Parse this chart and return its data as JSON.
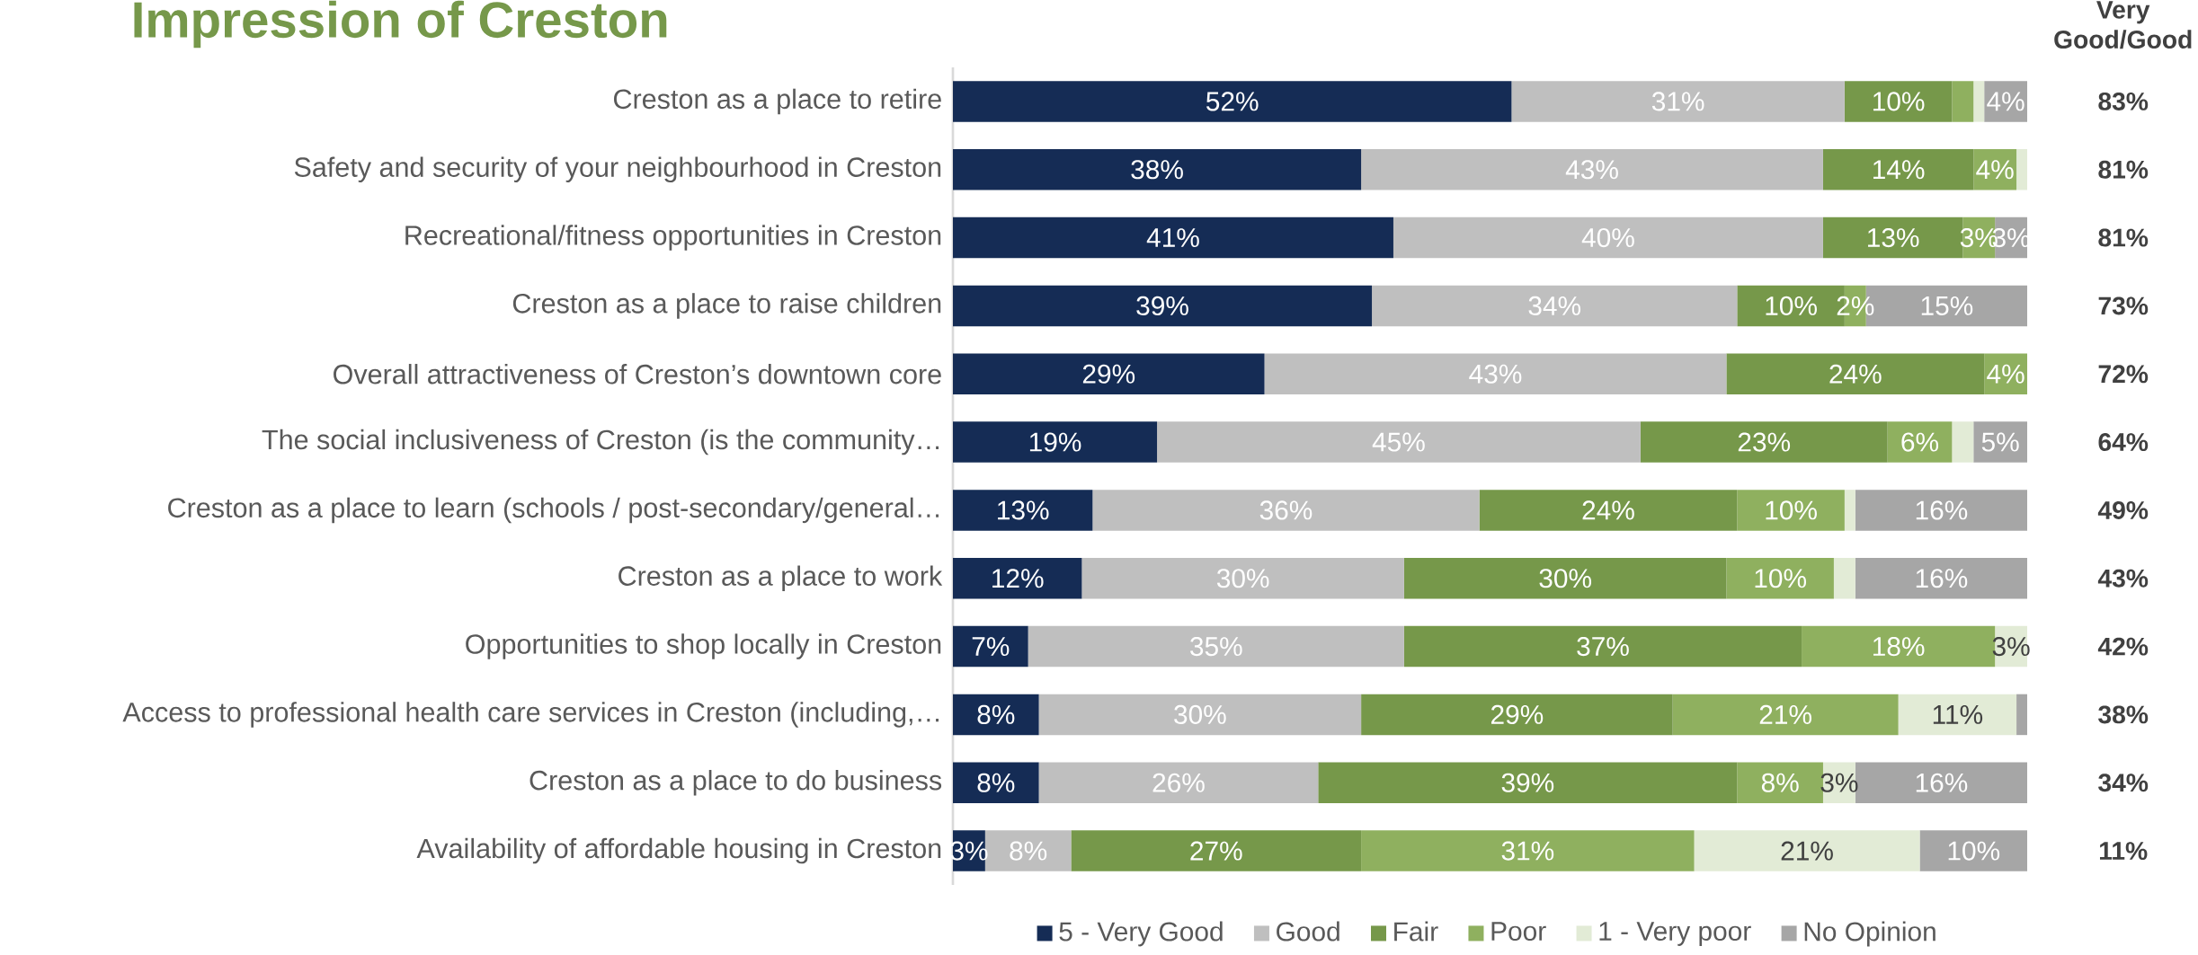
{
  "chart_data": {
    "type": "bar",
    "orientation": "horizontal",
    "stacked": true,
    "title": "Impression of Creston",
    "categories": [
      "Creston as a place to retire",
      "Safety and security of your neighbourhood in Creston",
      "Recreational/fitness opportunities in Creston",
      "Creston as a place to raise children",
      "Overall attractiveness of Creston’s downtown core",
      "The social inclusiveness of Creston (is the community…",
      "Creston as a place to learn (schools / post-secondary/general…",
      "Creston as a place to work",
      "Opportunities to shop locally in Creston",
      "Access to professional health care services in Creston (including,…",
      "Creston as a place to do business",
      "Availability of affordable housing in Creston"
    ],
    "series": [
      {
        "name": "5 - Very Good",
        "color": "#152c55",
        "values": [
          52,
          38,
          41,
          39,
          29,
          19,
          13,
          12,
          7,
          8,
          8,
          3
        ],
        "value_labels": [
          "52%",
          "38%",
          "41%",
          "39%",
          "29%",
          "19%",
          "13%",
          "12%",
          "7%",
          "8%",
          "8%",
          "3%"
        ]
      },
      {
        "name": "Good",
        "color": "#bfbfbf",
        "values": [
          31,
          43,
          40,
          34,
          43,
          45,
          36,
          30,
          35,
          30,
          26,
          8
        ],
        "value_labels": [
          "31%",
          "43%",
          "40%",
          "34%",
          "43%",
          "45%",
          "36%",
          "30%",
          "35%",
          "30%",
          "26%",
          "8%"
        ]
      },
      {
        "name": "Fair",
        "color": "#76984a",
        "values": [
          10,
          14,
          13,
          10,
          24,
          23,
          24,
          30,
          37,
          29,
          39,
          27
        ],
        "value_labels": [
          "10%",
          "14%",
          "13%",
          "10%",
          "24%",
          "23%",
          "24%",
          "30%",
          "37%",
          "29%",
          "39%",
          "27%"
        ]
      },
      {
        "name": "Poor",
        "color": "#8fb05f",
        "values": [
          2,
          4,
          3,
          2,
          4,
          6,
          10,
          10,
          18,
          21,
          8,
          31
        ],
        "value_labels": [
          null,
          "4%",
          "3%",
          "2%",
          "4%",
          "6%",
          "10%",
          "10%",
          "18%",
          "21%",
          "8%",
          "31%"
        ]
      },
      {
        "name": "1 - Very poor",
        "color": "#e2ebd6",
        "values": [
          1,
          1,
          0,
          0,
          0,
          2,
          1,
          2,
          3,
          11,
          3,
          21
        ],
        "value_labels": [
          null,
          null,
          null,
          null,
          null,
          null,
          null,
          null,
          "3%",
          "11%",
          "3%",
          "21%"
        ]
      },
      {
        "name": "No Opinion",
        "color": "#a6a6a6",
        "values": [
          4,
          0,
          3,
          15,
          0,
          5,
          16,
          16,
          0,
          1,
          16,
          10
        ],
        "value_labels": [
          "4%",
          null,
          "3%",
          "15%",
          null,
          "5%",
          "16%",
          "16%",
          null,
          null,
          "16%",
          "10%"
        ]
      }
    ],
    "xlim": [
      0,
      100
    ],
    "tick_labels": "y",
    "legend": "bottom",
    "annotations": [
      "Very Good/Good",
      "83%",
      "81%",
      "81%",
      "73%",
      "72%",
      "64%",
      "49%",
      "43%",
      "42%",
      "38%",
      "34%",
      "11%"
    ]
  }
}
